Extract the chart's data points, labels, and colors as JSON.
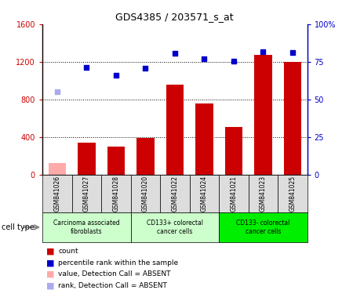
{
  "title": "GDS4385 / 203571_s_at",
  "samples": [
    "GSM841026",
    "GSM841027",
    "GSM841028",
    "GSM841020",
    "GSM841022",
    "GSM841024",
    "GSM841021",
    "GSM841023",
    "GSM841025"
  ],
  "counts": [
    120,
    340,
    300,
    390,
    960,
    760,
    510,
    1270,
    1200
  ],
  "ranks": [
    880,
    1140,
    1060,
    1130,
    1290,
    1230,
    1210,
    1310,
    1300
  ],
  "absent_mask": [
    true,
    false,
    false,
    false,
    false,
    false,
    false,
    false,
    false
  ],
  "bar_color_present": "#cc0000",
  "bar_color_absent": "#ffaaaa",
  "rank_color_present": "#0000cc",
  "rank_color_absent": "#aaaaee",
  "ylim_left": [
    0,
    1600
  ],
  "yticks_left": [
    0,
    400,
    800,
    1200,
    1600
  ],
  "ytick_labels_left": [
    "0",
    "400",
    "800",
    "1200",
    "1600"
  ],
  "ytick_labels_right": [
    "0",
    "25",
    "50",
    "75",
    "100%"
  ],
  "groups": [
    {
      "label": "Carcinoma associated\nfibroblasts",
      "start": 0,
      "end": 3,
      "color": "#ccffcc"
    },
    {
      "label": "CD133+ colorectal\ncancer cells",
      "start": 3,
      "end": 6,
      "color": "#ccffcc"
    },
    {
      "label": "CD133- colorectal\ncancer cells",
      "start": 6,
      "end": 9,
      "color": "#00ee00"
    }
  ],
  "cell_type_label": "cell type",
  "rank_scale": 1600,
  "legend": [
    {
      "color": "#cc0000",
      "label": "count"
    },
    {
      "color": "#0000cc",
      "label": "percentile rank within the sample"
    },
    {
      "color": "#ffaaaa",
      "label": "value, Detection Call = ABSENT"
    },
    {
      "color": "#aaaaee",
      "label": "rank, Detection Call = ABSENT"
    }
  ]
}
